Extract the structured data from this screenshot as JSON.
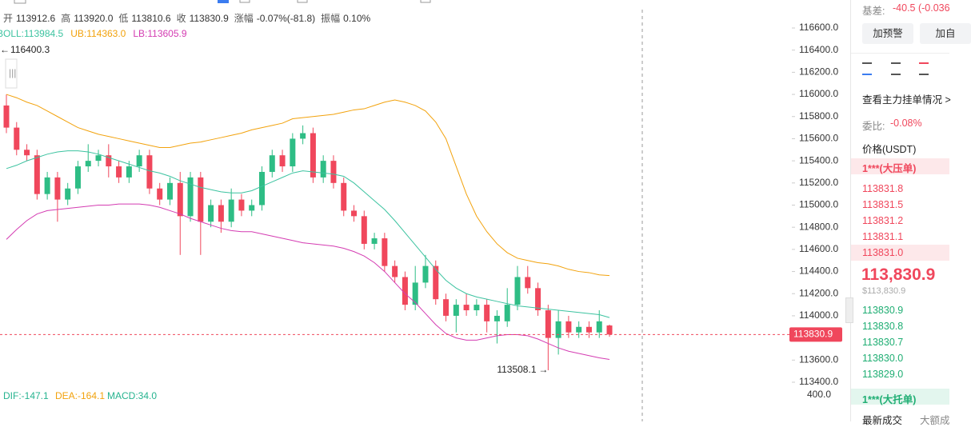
{
  "header": {
    "items": [
      {
        "label": "开",
        "value": "113912.6"
      },
      {
        "label": "高",
        "value": "113920.0"
      },
      {
        "label": "低",
        "value": "113810.6"
      },
      {
        "label": "收",
        "value": "113830.9"
      },
      {
        "label": "涨幅",
        "value": "-0.07%(-81.8)"
      },
      {
        "label": "振幅",
        "value": "0.10%"
      }
    ]
  },
  "chart_data": {
    "type": "candlestick",
    "open": [
      115900,
      115700,
      115500,
      115450,
      115100,
      115250,
      115050,
      115150,
      115350,
      115400,
      115450,
      115350,
      115250,
      115350,
      115450,
      115150,
      115050,
      115200,
      114900,
      115250,
      114850,
      115000,
      114850,
      115050,
      114950,
      115000,
      115300,
      115450,
      115350,
      115600,
      115650,
      115250,
      115400,
      115200,
      114950,
      114900,
      114650,
      114700,
      114450,
      114350,
      114100,
      114300,
      114450,
      114150,
      114000,
      114100,
      114050,
      114100,
      113950,
      113950,
      114100,
      114350,
      114250,
      114050,
      113800,
      113950,
      113850,
      113900,
      113850,
      113912.6
    ],
    "high": [
      116000,
      115750,
      115550,
      115500,
      115300,
      115300,
      115200,
      115400,
      115550,
      115500,
      115550,
      115400,
      115400,
      115500,
      115500,
      115200,
      115250,
      115300,
      115300,
      115300,
      115050,
      115050,
      115150,
      115100,
      115050,
      115350,
      115500,
      115500,
      115650,
      115720,
      115700,
      115450,
      115450,
      115250,
      115000,
      114950,
      114750,
      114750,
      114500,
      114400,
      114450,
      114550,
      114500,
      114200,
      114150,
      114200,
      114150,
      114150,
      114050,
      114250,
      114450,
      114450,
      114300,
      114100,
      114050,
      114000,
      113950,
      113950,
      114050,
      113920
    ],
    "low": [
      115650,
      115450,
      115400,
      115050,
      115050,
      114850,
      115000,
      115100,
      115300,
      115350,
      115250,
      115200,
      115200,
      115300,
      115100,
      115000,
      115000,
      114550,
      114850,
      114550,
      114800,
      114750,
      114800,
      114900,
      114900,
      114950,
      115250,
      115300,
      115300,
      115550,
      115200,
      115200,
      115150,
      114900,
      114850,
      114600,
      114600,
      114400,
      114300,
      114050,
      114050,
      114250,
      114100,
      113950,
      113850,
      114000,
      114000,
      113850,
      113750,
      113900,
      114050,
      114200,
      114000,
      113508.1,
      113650,
      113800,
      113800,
      113800,
      113800,
      113810.6
    ],
    "close": [
      115700,
      115500,
      115450,
      115100,
      115250,
      115050,
      115150,
      115350,
      115400,
      115450,
      115350,
      115250,
      115350,
      115450,
      115150,
      115050,
      115200,
      114900,
      115250,
      114850,
      115000,
      114850,
      115050,
      114950,
      115000,
      115300,
      115450,
      115350,
      115600,
      115650,
      115250,
      115400,
      115200,
      114950,
      114900,
      114650,
      114700,
      114450,
      114350,
      114100,
      114300,
      114450,
      114150,
      114000,
      114100,
      114050,
      114100,
      113950,
      114000,
      114100,
      114350,
      114250,
      114050,
      113800,
      113950,
      113850,
      113900,
      113850,
      113950,
      113830.9
    ],
    "up_color": "#2ebd85",
    "down_color": "#f0475c",
    "series": [
      {
        "name": "BOLL:113984.5",
        "color": "#3cc3a0",
        "values": [
          115330,
          115360,
          115400,
          115430,
          115460,
          115480,
          115490,
          115490,
          115480,
          115460,
          115430,
          115400,
          115370,
          115340,
          115310,
          115290,
          115260,
          115220,
          115190,
          115160,
          115140,
          115120,
          115110,
          115110,
          115130,
          115170,
          115210,
          115250,
          115290,
          115310,
          115300,
          115290,
          115280,
          115260,
          115200,
          115120,
          115040,
          114960,
          114860,
          114750,
          114640,
          114530,
          114420,
          114320,
          114250,
          114200,
          114170,
          114150,
          114130,
          114110,
          114090,
          114080,
          114070,
          114060,
          114050,
          114040,
          114030,
          114020,
          114010,
          113984.5
        ]
      },
      {
        "name": "UB:114363.0",
        "color": "#f2a20c",
        "values": [
          116000,
          115970,
          115930,
          115900,
          115850,
          115800,
          115750,
          115700,
          115670,
          115640,
          115620,
          115600,
          115580,
          115560,
          115540,
          115520,
          115520,
          115540,
          115560,
          115570,
          115590,
          115610,
          115630,
          115650,
          115680,
          115700,
          115720,
          115740,
          115780,
          115790,
          115800,
          115810,
          115820,
          115840,
          115860,
          115870,
          115900,
          115930,
          115950,
          115930,
          115900,
          115850,
          115750,
          115600,
          115350,
          115100,
          114900,
          114760,
          114650,
          114570,
          114520,
          114500,
          114480,
          114470,
          114450,
          114420,
          114400,
          114390,
          114370,
          114363
        ]
      },
      {
        "name": "LB:113605.9",
        "color": "#d43cb2",
        "values": [
          114690,
          114780,
          114860,
          114920,
          114950,
          114960,
          114970,
          114980,
          114990,
          115000,
          115000,
          115010,
          115010,
          115010,
          115000,
          114980,
          114950,
          114920,
          114880,
          114850,
          114820,
          114790,
          114770,
          114760,
          114760,
          114740,
          114720,
          114700,
          114680,
          114660,
          114650,
          114640,
          114630,
          114610,
          114580,
          114540,
          114480,
          114400,
          114300,
          114200,
          114120,
          114020,
          113920,
          113840,
          113800,
          113780,
          113780,
          113800,
          113820,
          113830,
          113830,
          113820,
          113790,
          113750,
          113710,
          113680,
          113660,
          113640,
          113620,
          113605.9
        ]
      }
    ],
    "ylim": [
      113300,
      116700
    ],
    "yticks": [
      {
        "value": 113400,
        "label": "113400.0"
      },
      {
        "value": 113600,
        "label": "113600.0"
      },
      {
        "value": 113800,
        "label": "113800.0"
      },
      {
        "value": 114000,
        "label": "114000.0"
      },
      {
        "value": 114200,
        "label": "114200.0"
      },
      {
        "value": 114400,
        "label": "114400.0"
      },
      {
        "value": 114600,
        "label": "114600.0"
      },
      {
        "value": 114800,
        "label": "114800.0"
      },
      {
        "value": 115000,
        "label": "115000.0"
      },
      {
        "value": 115200,
        "label": "115200.0"
      },
      {
        "value": 115400,
        "label": "115400.0"
      },
      {
        "value": 115600,
        "label": "115600.0"
      },
      {
        "value": 115800,
        "label": "115800.0"
      },
      {
        "value": 116000,
        "label": "116000.0"
      },
      {
        "value": 116200,
        "label": "116200.0"
      },
      {
        "value": 116400,
        "label": "116400.0"
      },
      {
        "value": 116600,
        "label": "116600.0"
      }
    ],
    "offscreen_high": 116400.3,
    "left_arrow": "←",
    "right_arrow": "→"
  },
  "macd": {
    "dif": "DIF:-147.1",
    "dea": "DEA:-164.1",
    "macd": "MACD:34.0",
    "tick": "400.0"
  },
  "panel": {
    "basis_label": "基差:",
    "basis_value": "-40.5 (-0.036",
    "buttons": [
      "加预警",
      "加自"
    ],
    "link": "查看主力挂单情况 >",
    "ratio_label": "委比:",
    "ratio_value": "-0.08%",
    "price_header": "价格(USDT)",
    "big_ask": "1***(大压单)",
    "asks": [
      "113831.8",
      "113831.5",
      "113831.2",
      "113831.1",
      "113831.0"
    ],
    "last": "113,830.9",
    "last_usd": "$113,830.9",
    "bids": [
      "113830.9",
      "113830.8",
      "113830.7",
      "113830.0",
      "113829.0"
    ],
    "big_bid": "1***(大托单)",
    "tabs": [
      "最新成交",
      "大额成"
    ]
  }
}
